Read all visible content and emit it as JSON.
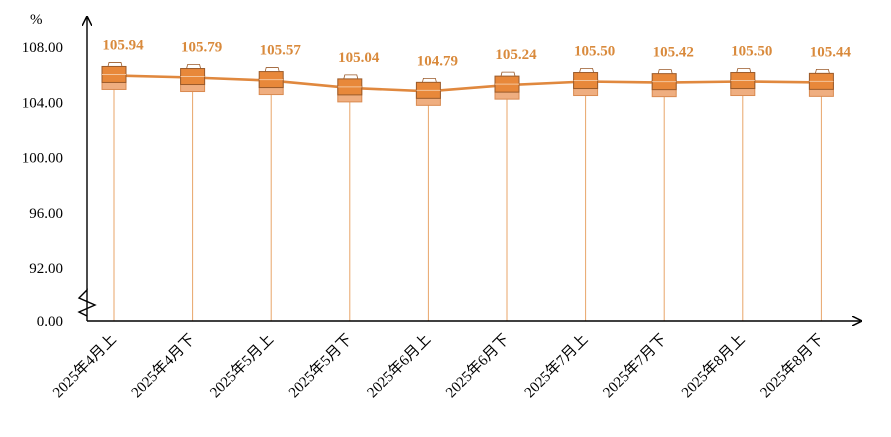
{
  "chart_data": {
    "type": "line",
    "y_unit": "%",
    "categories": [
      "2025年4月上",
      "2025年4月下",
      "2025年5月上",
      "2025年5月下",
      "2025年6月上",
      "2025年6月下",
      "2025年7月上",
      "2025年7月下",
      "2025年8月上",
      "2025年8月下"
    ],
    "series": [
      {
        "values": [
          105.94,
          105.79,
          105.57,
          105.04,
          104.79,
          105.24,
          105.5,
          105.42,
          105.5,
          105.44
        ]
      }
    ],
    "value_labels": [
      "105.94",
      "105.79",
      "105.57",
      "105.04",
      "104.79",
      "105.24",
      "105.50",
      "105.42",
      "105.50",
      "105.44"
    ],
    "y_ticks": [
      "108.00",
      "104.00",
      "100.00",
      "96.00",
      "92.00",
      "0.00"
    ],
    "y_tick_values": [
      108,
      104,
      100,
      96,
      92,
      0
    ],
    "ylim": [
      92,
      108
    ],
    "axis_break": true,
    "grid": false,
    "colors": {
      "line": "#E0883E",
      "label": "#D98A3C",
      "drop_line": "#E8A56A",
      "marker_fill": "#E8883A",
      "marker_shadow": "#EFAE80",
      "marker_edge": "#9A5A2A",
      "axis": "#000000"
    }
  }
}
